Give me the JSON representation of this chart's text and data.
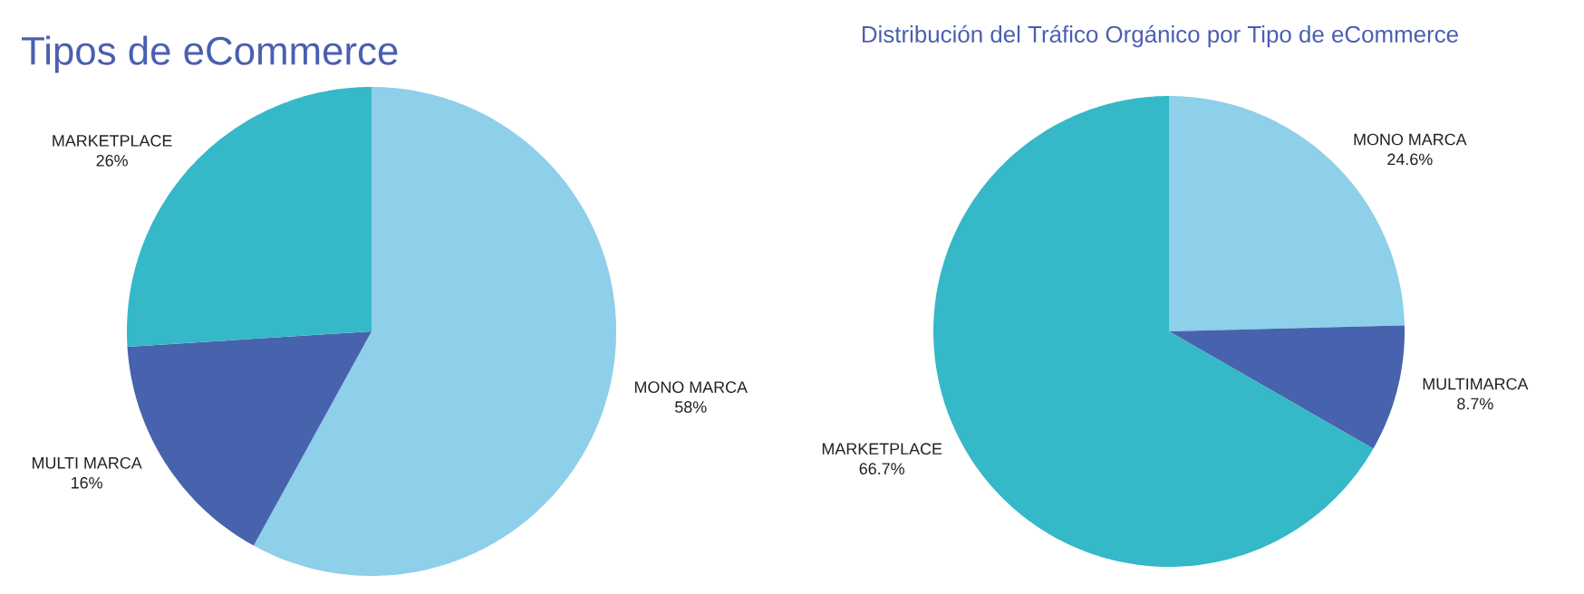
{
  "chart_data": [
    {
      "type": "pie",
      "title": "Tipos de eCommerce",
      "categories": [
        "MONO MARCA",
        "MULTI MARCA",
        "MARKETPLACE"
      ],
      "values": [
        58,
        16,
        26
      ],
      "value_labels": [
        "58%",
        "16%",
        "26%"
      ],
      "colors": [
        "#8ecfe9",
        "#4863ad",
        "#35b8c8"
      ]
    },
    {
      "type": "pie",
      "title": "Distribución del Tráfico Orgánico por Tipo de eCommerce",
      "categories": [
        "MONO MARCA",
        "MULTIMARCA",
        "MARKETPLACE"
      ],
      "values": [
        24.6,
        8.7,
        66.7
      ],
      "value_labels": [
        "24.6%",
        "8.7%",
        "66.7%"
      ],
      "colors": [
        "#8ecfe9",
        "#4863ad",
        "#35b8c8"
      ]
    }
  ]
}
